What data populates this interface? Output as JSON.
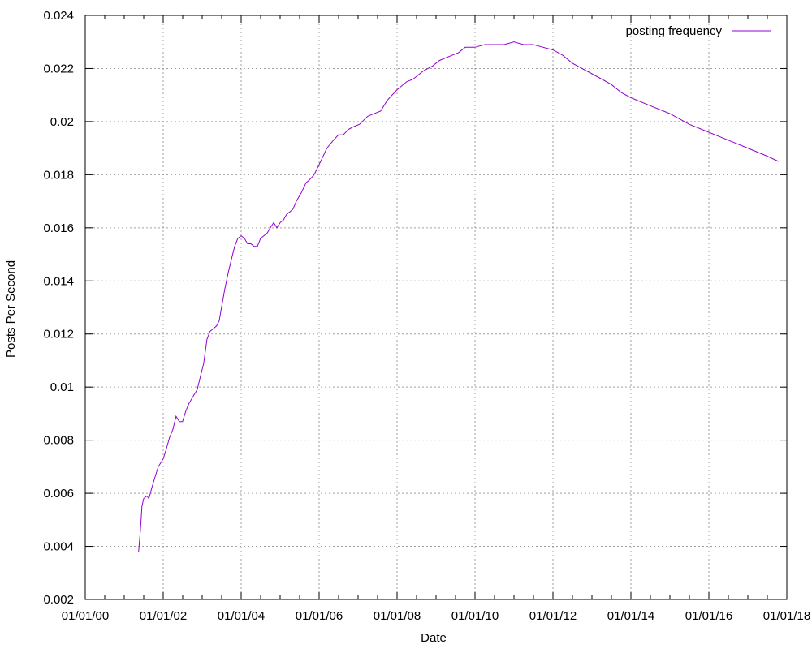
{
  "chart_data": {
    "type": "line",
    "title": "",
    "xlabel": "Date",
    "ylabel": "Posts Per Second",
    "x_tick_labels": [
      "01/01/00",
      "01/01/02",
      "01/01/04",
      "01/01/06",
      "01/01/08",
      "01/01/10",
      "01/01/12",
      "01/01/14",
      "01/01/16",
      "01/01/18"
    ],
    "xlim": [
      "2000-01-01",
      "2018-01-01"
    ],
    "y_tick_labels": [
      "0.002",
      "0.004",
      "0.006",
      "0.008",
      "0.01",
      "0.012",
      "0.014",
      "0.016",
      "0.018",
      "0.02",
      "0.022",
      "0.024"
    ],
    "ylim": [
      0.002,
      0.024
    ],
    "grid": true,
    "legend": "top-right",
    "series": [
      {
        "name": "posting frequency",
        "color": "#9400d3",
        "x": [
          "2001-05-15",
          "2001-06-01",
          "2001-06-15",
          "2001-07-01",
          "2001-08-01",
          "2001-08-20",
          "2001-09-15",
          "2001-10-15",
          "2001-11-15",
          "2002-01-01",
          "2002-02-01",
          "2002-03-01",
          "2002-04-01",
          "2002-05-01",
          "2002-06-01",
          "2002-07-01",
          "2002-08-01",
          "2002-09-01",
          "2002-10-15",
          "2002-11-15",
          "2002-12-15",
          "2003-01-15",
          "2003-02-15",
          "2003-03-15",
          "2003-04-15",
          "2003-05-15",
          "2003-06-10",
          "2003-07-01",
          "2003-08-01",
          "2003-09-01",
          "2003-10-01",
          "2003-11-01",
          "2003-12-01",
          "2004-01-01",
          "2004-02-01",
          "2004-03-01",
          "2004-04-01",
          "2004-05-01",
          "2004-06-01",
          "2004-07-01",
          "2004-08-01",
          "2004-09-01",
          "2004-10-01",
          "2004-11-01",
          "2004-12-01",
          "2005-01-01",
          "2005-02-01",
          "2005-03-01",
          "2005-04-01",
          "2005-05-01",
          "2005-06-01",
          "2005-07-15",
          "2005-09-01",
          "2005-10-01",
          "2005-11-15",
          "2006-01-15",
          "2006-03-15",
          "2006-05-15",
          "2006-07-01",
          "2006-08-15",
          "2006-10-01",
          "2006-11-15",
          "2007-01-15",
          "2007-04-01",
          "2007-06-01",
          "2007-08-01",
          "2007-10-01",
          "2008-01-01",
          "2008-04-01",
          "2008-06-01",
          "2008-09-01",
          "2008-12-01",
          "2009-02-01",
          "2009-04-01",
          "2009-06-01",
          "2009-08-01",
          "2009-10-01",
          "2010-01-01",
          "2010-04-01",
          "2010-07-01",
          "2010-10-01",
          "2011-01-01",
          "2011-04-01",
          "2011-07-01",
          "2011-10-01",
          "2012-01-01",
          "2012-04-01",
          "2012-07-01",
          "2012-10-01",
          "2013-01-01",
          "2013-04-01",
          "2013-07-01",
          "2013-10-01",
          "2014-01-01",
          "2014-07-01",
          "2015-01-01",
          "2015-07-01",
          "2016-01-01",
          "2016-07-01",
          "2017-01-01",
          "2017-07-01",
          "2017-10-15"
        ],
        "y": [
          0.0038,
          0.0046,
          0.0055,
          0.0058,
          0.0059,
          0.0058,
          0.0062,
          0.0066,
          0.007,
          0.0073,
          0.0077,
          0.0081,
          0.0084,
          0.0089,
          0.0087,
          0.0087,
          0.0091,
          0.0094,
          0.0097,
          0.0099,
          0.0104,
          0.0109,
          0.0118,
          0.0121,
          0.0122,
          0.0123,
          0.0125,
          0.013,
          0.0137,
          0.0143,
          0.0148,
          0.0153,
          0.0156,
          0.0157,
          0.0156,
          0.0154,
          0.0154,
          0.0153,
          0.0153,
          0.0156,
          0.0157,
          0.0158,
          0.016,
          0.0162,
          0.016,
          0.0162,
          0.0163,
          0.0165,
          0.0166,
          0.0167,
          0.017,
          0.0173,
          0.0177,
          0.0178,
          0.018,
          0.0185,
          0.019,
          0.0193,
          0.0195,
          0.0195,
          0.0197,
          0.0198,
          0.0199,
          0.0202,
          0.0203,
          0.0204,
          0.0208,
          0.0212,
          0.0215,
          0.0216,
          0.0219,
          0.0221,
          0.0223,
          0.0224,
          0.0225,
          0.0226,
          0.0228,
          0.0228,
          0.0229,
          0.0229,
          0.0229,
          0.023,
          0.0229,
          0.0229,
          0.0228,
          0.0227,
          0.0225,
          0.0222,
          0.022,
          0.0218,
          0.0216,
          0.0214,
          0.0211,
          0.0209,
          0.0206,
          0.0203,
          0.0199,
          0.0196,
          0.0193,
          0.019,
          0.0187,
          0.0185
        ]
      }
    ]
  }
}
